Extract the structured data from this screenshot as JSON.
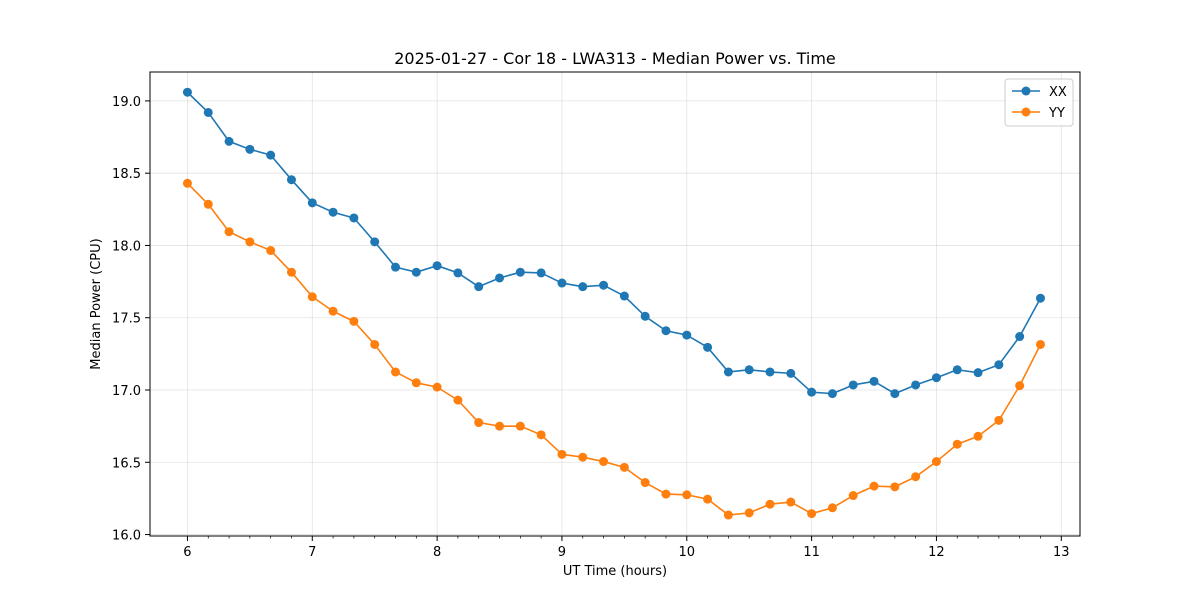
{
  "chart_data": {
    "type": "line",
    "title": "2025-01-27 - Cor 18 - LWA313 - Median Power vs. Time",
    "xlabel": "UT Time (hours)",
    "ylabel": "Median Power (CPU)",
    "xlim": [
      5.7,
      13.15
    ],
    "ylim": [
      15.99,
      19.2
    ],
    "xticks": [
      6,
      7,
      8,
      9,
      10,
      11,
      12,
      13
    ],
    "xtick_labels": [
      "6",
      "7",
      "8",
      "9",
      "10",
      "11",
      "12",
      "13"
    ],
    "yticks": [
      16.0,
      16.5,
      17.0,
      17.5,
      18.0,
      18.5,
      19.0
    ],
    "ytick_labels": [
      "16.0",
      "16.5",
      "17.0",
      "17.5",
      "18.0",
      "18.5",
      "19.0"
    ],
    "grid": true,
    "legend_position": "top-right",
    "x": [
      6.0,
      6.1667,
      6.3333,
      6.5,
      6.6667,
      6.8333,
      7.0,
      7.1667,
      7.3333,
      7.5,
      7.6667,
      7.8333,
      8.0,
      8.1667,
      8.3333,
      8.5,
      8.6667,
      8.8333,
      9.0,
      9.1667,
      9.3333,
      9.5,
      9.6667,
      9.8333,
      10.0,
      10.1667,
      10.3333,
      10.5,
      10.6667,
      10.8333,
      11.0,
      11.1667,
      11.3333,
      11.5,
      11.6667,
      11.8333,
      12.0,
      12.1667,
      12.3333,
      12.5,
      12.6667,
      12.8333
    ],
    "series": [
      {
        "name": "XX",
        "color": "#1f77b4",
        "values": [
          19.06,
          18.92,
          18.72,
          18.665,
          18.625,
          18.455,
          18.295,
          18.23,
          18.19,
          18.025,
          17.85,
          17.815,
          17.86,
          17.81,
          17.715,
          17.775,
          17.815,
          17.81,
          17.74,
          17.715,
          17.725,
          17.65,
          17.51,
          17.41,
          17.38,
          17.295,
          17.125,
          17.14,
          17.125,
          17.115,
          16.985,
          16.975,
          17.035,
          17.06,
          16.975,
          17.035,
          17.085,
          17.14,
          17.12,
          17.175,
          17.37,
          17.635
        ]
      },
      {
        "name": "YY",
        "color": "#ff7f0e",
        "values": [
          18.43,
          18.285,
          18.095,
          18.025,
          17.965,
          17.815,
          17.645,
          17.545,
          17.475,
          17.315,
          17.125,
          17.05,
          17.02,
          16.93,
          16.775,
          16.75,
          16.75,
          16.69,
          16.555,
          16.535,
          16.505,
          16.465,
          16.36,
          16.28,
          16.275,
          16.245,
          16.135,
          16.15,
          16.21,
          16.225,
          16.145,
          16.185,
          16.27,
          16.335,
          16.33,
          16.4,
          16.505,
          16.625,
          16.68,
          16.79,
          17.03,
          17.315
        ]
      }
    ]
  }
}
